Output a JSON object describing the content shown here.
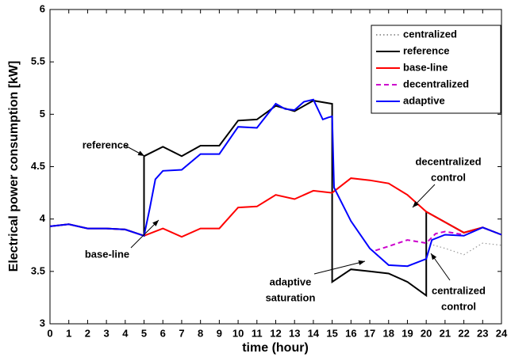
{
  "chart_data": {
    "type": "line",
    "xlabel": "time (hour)",
    "ylabel": "Electrical power consumption [kW]",
    "xlim": [
      0,
      24
    ],
    "xticks": [
      0,
      1,
      2,
      3,
      4,
      5,
      6,
      7,
      8,
      9,
      10,
      11,
      12,
      13,
      14,
      15,
      16,
      17,
      18,
      19,
      20,
      21,
      22,
      23,
      24
    ],
    "ylim": [
      3,
      6
    ],
    "yticks": [
      3,
      3.5,
      4,
      4.5,
      5,
      5.5,
      6
    ],
    "legend": "upper right",
    "series": [
      {
        "name": "centralized",
        "color": "#999999",
        "style": "dotted",
        "x": [
          20,
          21,
          22,
          23,
          24
        ],
        "values": [
          3.77,
          3.72,
          3.66,
          3.77,
          3.75
        ]
      },
      {
        "name": "reference",
        "color": "#000000",
        "style": "solid",
        "x": [
          0,
          1,
          2,
          3,
          4,
          5,
          5,
          6,
          7,
          8,
          9,
          10,
          11,
          12,
          13,
          14,
          15,
          15,
          16,
          17,
          18,
          19,
          20,
          20,
          21,
          22,
          23,
          24
        ],
        "values": [
          3.93,
          3.95,
          3.91,
          3.91,
          3.9,
          3.84,
          4.6,
          4.69,
          4.6,
          4.7,
          4.7,
          4.94,
          4.95,
          5.08,
          5.03,
          5.13,
          5.1,
          3.4,
          3.52,
          3.5,
          3.48,
          3.4,
          3.27,
          4.07,
          3.97,
          3.87,
          3.92,
          3.85
        ]
      },
      {
        "name": "base-line",
        "color": "#ff0000",
        "style": "solid",
        "x": [
          0,
          1,
          2,
          3,
          4,
          5,
          6,
          7,
          8,
          9,
          10,
          11,
          12,
          13,
          14,
          15,
          16,
          17,
          18,
          19,
          20,
          21,
          22,
          23,
          24
        ],
        "values": [
          3.93,
          3.95,
          3.91,
          3.91,
          3.9,
          3.84,
          3.91,
          3.83,
          3.91,
          3.91,
          4.11,
          4.12,
          4.23,
          4.19,
          4.27,
          4.25,
          4.39,
          4.37,
          4.34,
          4.23,
          4.07,
          3.97,
          3.87,
          3.92,
          3.85
        ]
      },
      {
        "name": "decentralized",
        "color": "#cc00cc",
        "style": "dashed",
        "x": [
          17.3,
          18,
          19,
          20,
          20.5,
          21,
          22
        ],
        "values": [
          3.7,
          3.74,
          3.8,
          3.77,
          3.86,
          3.88,
          3.85
        ]
      },
      {
        "name": "adaptive",
        "color": "#0000ff",
        "style": "solid",
        "x": [
          0,
          1,
          2,
          3,
          4,
          5,
          5.3,
          5.6,
          6,
          7,
          8,
          9,
          10,
          11,
          12,
          12.5,
          13,
          13.5,
          14,
          14.5,
          14.8,
          15,
          15.1,
          16,
          17,
          18,
          19,
          20,
          20.3,
          21,
          22,
          23,
          24
        ],
        "values": [
          3.93,
          3.95,
          3.91,
          3.91,
          3.9,
          3.84,
          4.1,
          4.38,
          4.46,
          4.47,
          4.62,
          4.62,
          4.88,
          4.87,
          5.1,
          5.05,
          5.04,
          5.12,
          5.14,
          4.95,
          4.97,
          4.98,
          4.3,
          3.98,
          3.72,
          3.56,
          3.55,
          3.62,
          3.8,
          3.85,
          3.84,
          3.92,
          3.85
        ]
      }
    ],
    "annotations": [
      {
        "lines": [
          "reference"
        ]
      },
      {
        "lines": [
          "base-line"
        ]
      },
      {
        "lines": [
          "adaptive",
          "saturation"
        ]
      },
      {
        "lines": [
          "decentralized",
          "control"
        ]
      },
      {
        "lines": [
          "centralized",
          "control"
        ]
      }
    ]
  }
}
